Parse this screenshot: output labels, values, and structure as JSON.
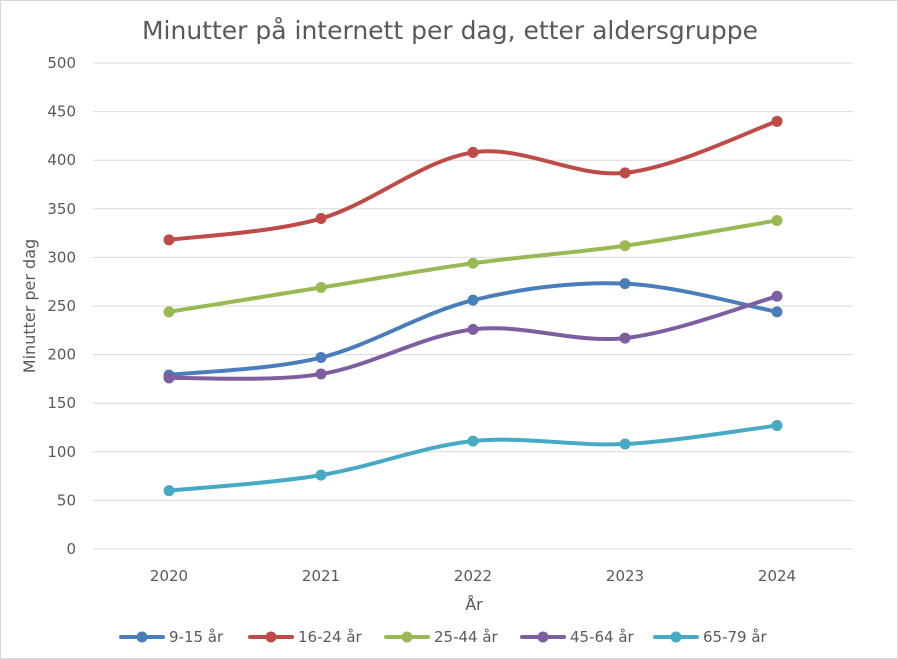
{
  "chart_data": {
    "type": "line",
    "title": "Minutter på internett per dag, etter aldersgruppe",
    "xlabel": "År",
    "ylabel": "Minutter per dag",
    "categories": [
      "2020",
      "2021",
      "2022",
      "2023",
      "2024"
    ],
    "ylim": [
      0,
      500
    ],
    "yticks": [
      0,
      50,
      100,
      150,
      200,
      250,
      300,
      350,
      400,
      450,
      500
    ],
    "grid": true,
    "smoothed": true,
    "legend_position": "bottom",
    "series": [
      {
        "name": "9-15 år",
        "color": "#4a7ebb",
        "values": [
          179,
          197,
          256,
          273,
          244
        ]
      },
      {
        "name": "16-24 år",
        "color": "#be4b48",
        "values": [
          318,
          340,
          408,
          387,
          440
        ]
      },
      {
        "name": "25-44 år",
        "color": "#98b954",
        "values": [
          244,
          269,
          294,
          312,
          338
        ]
      },
      {
        "name": "45-64 år",
        "color": "#7d5fa0",
        "values": [
          176,
          180,
          226,
          217,
          260
        ]
      },
      {
        "name": "65-79 år",
        "color": "#46aac5",
        "values": [
          60,
          76,
          111,
          108,
          127
        ]
      }
    ]
  }
}
